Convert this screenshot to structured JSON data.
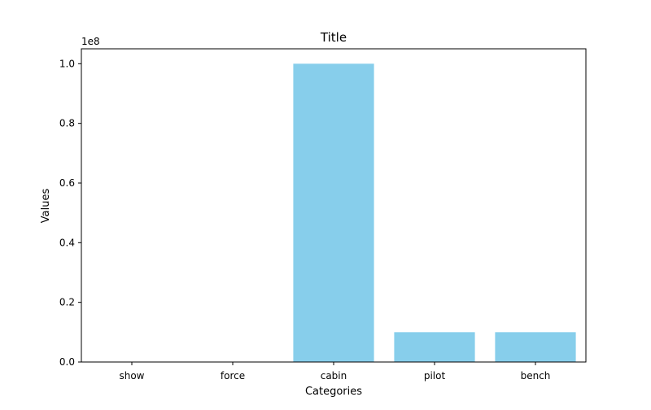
{
  "chart_data": {
    "type": "bar",
    "title": "Title",
    "xlabel": "Categories",
    "ylabel": "Values",
    "categories": [
      "show",
      "force",
      "cabin",
      "pilot",
      "bench"
    ],
    "values": [
      0,
      0,
      100000000,
      10000000,
      10000000
    ],
    "ylim": [
      0,
      105000000
    ],
    "yticks": [
      0,
      20000000,
      40000000,
      60000000,
      80000000,
      100000000
    ],
    "ytick_labels": [
      "0.0",
      "0.2",
      "0.4",
      "0.6",
      "0.8",
      "1.0"
    ],
    "y_offset_label": "1e8",
    "bar_color": "#87CEEB",
    "grid": false,
    "legend": "none"
  }
}
